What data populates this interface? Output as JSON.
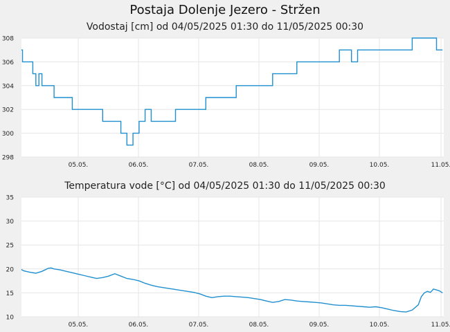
{
  "page_title": "Postaja Dolenje Jezero - Stržen",
  "colors": {
    "line": "#1f8fd0",
    "grid": "#e6e6e6",
    "plot_bg": "#ffffff",
    "page_bg": "#f0f0f0"
  },
  "chart_data": [
    {
      "type": "line",
      "title": "Vodostaj [cm] od 04/05/2025 01:30 do 11/05/2025 00:30",
      "xlabel": "",
      "ylabel": "",
      "x_tick_labels": [
        "05.05.",
        "06.05.",
        "07.05.",
        "08.05.",
        "09.05.",
        "10.05.",
        "11.05."
      ],
      "y_ticks": [
        298,
        300,
        302,
        304,
        306,
        308
      ],
      "ylim": [
        298,
        308
      ],
      "xlim_days": [
        4.0625,
        11.02
      ],
      "grid": true,
      "series": [
        {
          "x": [
            4.06,
            4.08,
            4.1,
            4.2,
            4.25,
            4.3,
            4.35,
            4.4,
            4.5,
            4.6,
            4.7,
            4.8,
            4.9,
            5.0,
            5.1,
            5.2,
            5.3,
            5.4,
            5.5,
            5.6,
            5.7,
            5.8,
            5.9,
            6.0,
            6.1,
            6.2,
            6.3,
            6.4,
            6.5,
            6.6,
            6.7,
            6.8,
            6.9,
            7.0,
            7.1,
            7.2,
            7.3,
            7.4,
            7.5,
            7.6,
            7.7,
            7.8,
            7.9,
            8.0,
            8.1,
            8.2,
            8.3,
            8.4,
            8.5,
            8.6,
            8.7,
            8.8,
            8.9,
            9.0,
            9.1,
            9.2,
            9.3,
            9.4,
            9.5,
            9.6,
            9.7,
            9.8,
            9.9,
            10.0,
            10.1,
            10.2,
            10.3,
            10.4,
            10.5,
            10.6,
            10.7,
            10.8,
            10.9,
            11.0
          ],
          "y": [
            307,
            306,
            306,
            306,
            305,
            304,
            305,
            304,
            304,
            303,
            303,
            303,
            302,
            302,
            302,
            302,
            302,
            301,
            301,
            301,
            300,
            299,
            300,
            301,
            302,
            301,
            301,
            301,
            301,
            302,
            302,
            302,
            302,
            302,
            303,
            303,
            303,
            303,
            303,
            304,
            304,
            304,
            304,
            304,
            304,
            305,
            305,
            305,
            305,
            306,
            306,
            306,
            306,
            306,
            306,
            306,
            307,
            307,
            306,
            307,
            307,
            307,
            307,
            307,
            307,
            307,
            307,
            307,
            308,
            308,
            308,
            308,
            307,
            307
          ]
        }
      ]
    },
    {
      "type": "line",
      "title": "Temperatura vode [°C] od 04/05/2025 01:30 do 11/05/2025 00:30",
      "xlabel": "",
      "ylabel": "",
      "x_tick_labels": [
        "05.05.",
        "06.05.",
        "07.05.",
        "08.05.",
        "09.05.",
        "10.05.",
        "11.05."
      ],
      "y_ticks": [
        10,
        15,
        20,
        25,
        30,
        35
      ],
      "ylim": [
        10,
        35
      ],
      "xlim_days": [
        4.0625,
        11.02
      ],
      "grid": true,
      "series": [
        {
          "x": [
            4.06,
            4.1,
            4.2,
            4.3,
            4.4,
            4.5,
            4.55,
            4.6,
            4.7,
            4.8,
            4.9,
            5.0,
            5.1,
            5.2,
            5.3,
            5.4,
            5.5,
            5.6,
            5.7,
            5.8,
            5.9,
            6.0,
            6.1,
            6.2,
            6.3,
            6.4,
            6.5,
            6.6,
            6.7,
            6.8,
            6.9,
            7.0,
            7.1,
            7.2,
            7.3,
            7.4,
            7.5,
            7.6,
            7.7,
            7.8,
            7.9,
            8.0,
            8.1,
            8.2,
            8.3,
            8.4,
            8.5,
            8.6,
            8.7,
            8.8,
            8.9,
            9.0,
            9.1,
            9.2,
            9.3,
            9.4,
            9.5,
            9.6,
            9.7,
            9.8,
            9.9,
            10.0,
            10.1,
            10.2,
            10.3,
            10.4,
            10.5,
            10.6,
            10.65,
            10.7,
            10.75,
            10.8,
            10.85,
            10.9,
            10.95,
            11.0
          ],
          "y": [
            19.9,
            19.6,
            19.3,
            19.1,
            19.5,
            20.1,
            20.2,
            20.0,
            19.8,
            19.5,
            19.2,
            18.9,
            18.6,
            18.3,
            18.0,
            18.2,
            18.5,
            19.0,
            18.5,
            18.0,
            17.8,
            17.5,
            17.0,
            16.6,
            16.3,
            16.1,
            15.9,
            15.7,
            15.5,
            15.3,
            15.1,
            14.8,
            14.3,
            14.0,
            14.2,
            14.3,
            14.3,
            14.2,
            14.1,
            14.0,
            13.8,
            13.6,
            13.3,
            13.0,
            13.2,
            13.6,
            13.5,
            13.3,
            13.2,
            13.1,
            13.0,
            12.9,
            12.7,
            12.5,
            12.4,
            12.4,
            12.3,
            12.2,
            12.1,
            12.0,
            12.1,
            11.9,
            11.6,
            11.3,
            11.1,
            11.0,
            11.4,
            12.5,
            14.2,
            15.0,
            15.3,
            15.1,
            15.8,
            15.6,
            15.4,
            15.0
          ]
        }
      ]
    }
  ]
}
